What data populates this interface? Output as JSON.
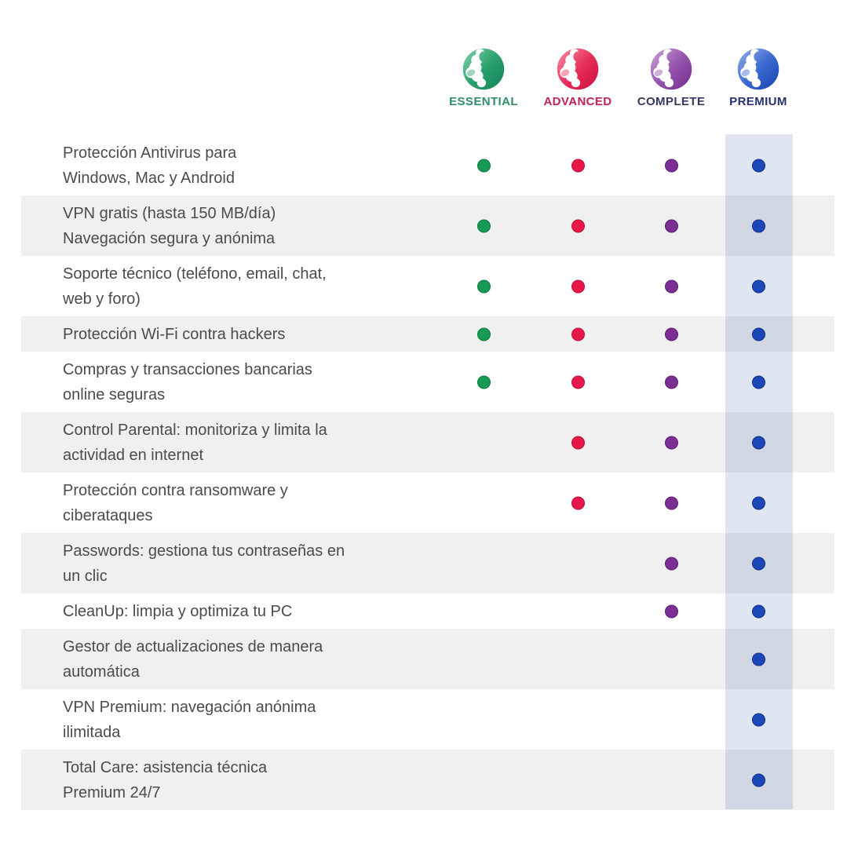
{
  "chart_data": {
    "type": "table",
    "title": "",
    "plans": [
      {
        "name": "ESSENTIAL",
        "label_color": "#2f8f66",
        "dot_color": "#169a55",
        "dot_border": "#0c7a40",
        "icon": "panda-logo",
        "icon_color_light": "#7ecfa9",
        "icon_color": "#2aa06c",
        "icon_color_dark": "#15845a"
      },
      {
        "name": "ADVANCED",
        "label_color": "#c22350",
        "dot_color": "#e6174b",
        "dot_border": "#c00e39",
        "icon": "panda-logo",
        "icon_color_light": "#f38ba1",
        "icon_color": "#e73058",
        "icon_color_dark": "#cc0e41"
      },
      {
        "name": "COMPLETE",
        "label_color": "#353a5d",
        "dot_color": "#7b2f92",
        "dot_border": "#5f1d75",
        "icon": "panda-logo",
        "icon_color_light": "#c89cd6",
        "icon_color": "#9454ac",
        "icon_color_dark": "#762f92"
      },
      {
        "name": "PREMIUM",
        "label_color": "#273170",
        "dot_color": "#1f4ec4",
        "dot_border": "#14368f",
        "icon": "panda-logo",
        "icon_color_light": "#92aae4",
        "icon_color": "#3c6ad1",
        "icon_color_dark": "#1844b0"
      }
    ],
    "highlighted_plan": "PREMIUM",
    "features": [
      {
        "label": "Protección Antivirus para\nWindows, Mac y Android",
        "included": [
          true,
          true,
          true,
          true
        ]
      },
      {
        "label": "VPN gratis (hasta 150 MB/día)\nNavegación segura y anónima",
        "included": [
          true,
          true,
          true,
          true
        ]
      },
      {
        "label": "Soporte técnico (teléfono, email, chat,\nweb y foro)",
        "included": [
          true,
          true,
          true,
          true
        ]
      },
      {
        "label": "Protección Wi-Fi contra hackers",
        "included": [
          true,
          true,
          true,
          true
        ]
      },
      {
        "label": "Compras y transacciones bancarias\nonline seguras",
        "included": [
          true,
          true,
          true,
          true
        ]
      },
      {
        "label": "Control Parental: monitoriza y limita la\nactividad en internet",
        "included": [
          false,
          true,
          true,
          true
        ]
      },
      {
        "label": "Protección contra ransomware y\nciberataques",
        "included": [
          false,
          true,
          true,
          true
        ]
      },
      {
        "label": "Passwords: gestiona tus contraseñas en\nun clic",
        "included": [
          false,
          false,
          true,
          true
        ]
      },
      {
        "label": "CleanUp: limpia y optimiza tu PC",
        "included": [
          false,
          false,
          true,
          true
        ]
      },
      {
        "label": "Gestor de actualizaciones de manera\nautomática",
        "included": [
          false,
          false,
          false,
          true
        ]
      },
      {
        "label": "VPN Premium: navegación anónima\nilimitada",
        "included": [
          false,
          false,
          false,
          true
        ]
      },
      {
        "label": "Total Care: asistencia técnica\nPremium 24/7",
        "included": [
          false,
          false,
          false,
          true
        ]
      }
    ]
  },
  "colors": {
    "page_bg": "#ffffff",
    "row_alt_bg": "#f0f0f1",
    "premium_band": "#dfe6f1",
    "feature_text": "#4b4b4b"
  }
}
